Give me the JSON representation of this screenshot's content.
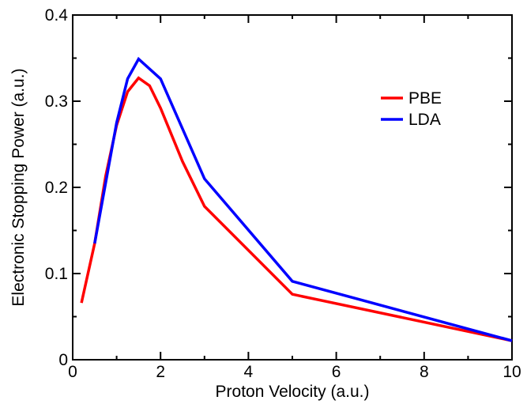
{
  "chart_data": {
    "type": "line",
    "xlabel": "Proton Velocity (a.u.)",
    "ylabel": "Electronic Stopping Power (a.u.)",
    "xlim": [
      0,
      10
    ],
    "ylim": [
      0,
      0.4
    ],
    "x_ticks": [
      "0",
      "2",
      "4",
      "6",
      "8",
      "10"
    ],
    "y_ticks": [
      "0",
      "0.1",
      "0.2",
      "0.3",
      "0.4"
    ],
    "grid": false,
    "legend_position": "top-right",
    "series": [
      {
        "name": "PBE",
        "color": "#ff0000",
        "x": [
          0.2,
          0.5,
          0.75,
          1.0,
          1.25,
          1.5,
          1.75,
          2.0,
          2.5,
          3.0,
          5.0,
          10.0
        ],
        "y": [
          0.066,
          0.135,
          0.213,
          0.272,
          0.311,
          0.327,
          0.318,
          0.292,
          0.23,
          0.178,
          0.076,
          0.022
        ]
      },
      {
        "name": "LDA",
        "color": "#0000ff",
        "x": [
          0.5,
          0.75,
          1.0,
          1.25,
          1.5,
          2.0,
          3.0,
          5.0,
          10.0
        ],
        "y": [
          0.135,
          0.205,
          0.275,
          0.326,
          0.349,
          0.326,
          0.21,
          0.091,
          0.022
        ]
      }
    ]
  }
}
